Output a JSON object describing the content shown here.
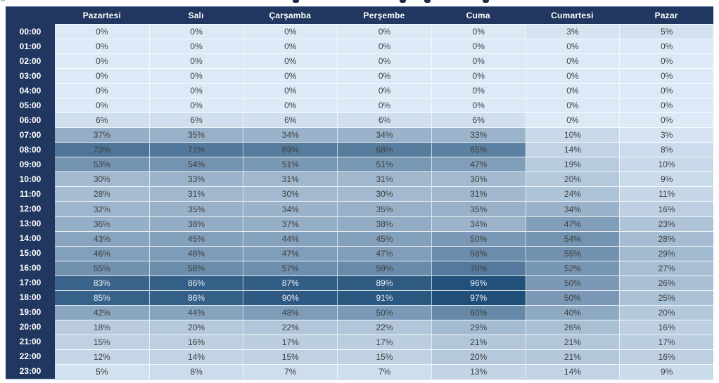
{
  "chart_data": {
    "type": "heatmap",
    "title": "",
    "value_format": "percent",
    "legend_position": "none",
    "columns": [
      "Pazartesi",
      "Salı",
      "Çarşamba",
      "Perşembe",
      "Cuma",
      "Cumartesi",
      "Pazar"
    ],
    "column_keys": [
      "pazartesi",
      "sali",
      "carsamba",
      "persembe",
      "cuma",
      "cumartesi",
      "pazar"
    ],
    "rows": [
      "00:00",
      "01:00",
      "02:00",
      "03:00",
      "04:00",
      "05:00",
      "06:00",
      "07:00",
      "08:00",
      "09:00",
      "10:00",
      "11:00",
      "12:00",
      "13:00",
      "14:00",
      "15:00",
      "16:00",
      "17:00",
      "18:00",
      "19:00",
      "20:00",
      "21:00",
      "22:00",
      "23:00"
    ],
    "values": [
      [
        0,
        0,
        0,
        0,
        0,
        3,
        5
      ],
      [
        0,
        0,
        0,
        0,
        0,
        0,
        0
      ],
      [
        0,
        0,
        0,
        0,
        0,
        0,
        0
      ],
      [
        0,
        0,
        0,
        0,
        0,
        0,
        0
      ],
      [
        0,
        0,
        0,
        0,
        0,
        0,
        0
      ],
      [
        0,
        0,
        0,
        0,
        0,
        0,
        0
      ],
      [
        6,
        6,
        6,
        6,
        6,
        0,
        0
      ],
      [
        37,
        35,
        34,
        34,
        33,
        10,
        3
      ],
      [
        73,
        71,
        69,
        68,
        65,
        14,
        8
      ],
      [
        53,
        54,
        51,
        51,
        47,
        19,
        10
      ],
      [
        30,
        33,
        31,
        31,
        30,
        20,
        9
      ],
      [
        28,
        31,
        30,
        30,
        31,
        24,
        11
      ],
      [
        32,
        35,
        34,
        35,
        35,
        34,
        16
      ],
      [
        36,
        38,
        37,
        38,
        34,
        47,
        23
      ],
      [
        43,
        45,
        44,
        45,
        50,
        54,
        28
      ],
      [
        46,
        48,
        47,
        47,
        58,
        55,
        29
      ],
      [
        55,
        58,
        57,
        59,
        70,
        52,
        27
      ],
      [
        83,
        86,
        87,
        89,
        96,
        50,
        26
      ],
      [
        85,
        86,
        90,
        91,
        97,
        50,
        25
      ],
      [
        42,
        44,
        48,
        50,
        60,
        40,
        20
      ],
      [
        18,
        20,
        22,
        22,
        29,
        26,
        16
      ],
      [
        15,
        16,
        17,
        17,
        21,
        21,
        17
      ],
      [
        12,
        14,
        15,
        15,
        20,
        21,
        16
      ],
      [
        5,
        8,
        7,
        7,
        13,
        14,
        9
      ]
    ],
    "value_range": [
      0,
      97
    ],
    "colors": {
      "header_bg": "#21375F",
      "header_text": "#FFFFFF",
      "scale_min": "#DCE9F6",
      "scale_max": "#1F4E79",
      "cell_text_dark": "#3F3F3F",
      "cell_text_light": "#E8EEF5",
      "light_text_threshold": 80
    }
  }
}
